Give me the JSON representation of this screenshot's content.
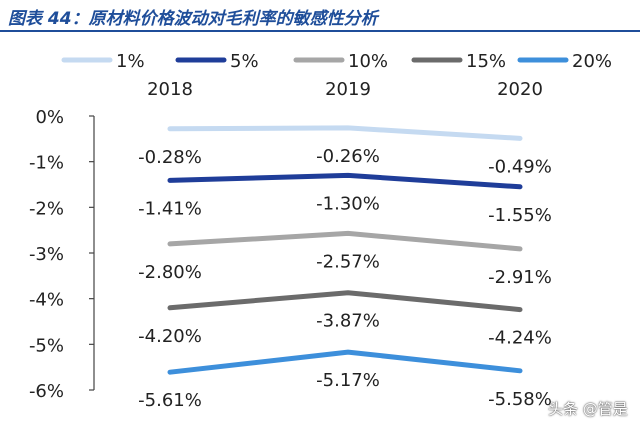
{
  "title": "图表 44：原材料价格波动对毛利率的敏感性分析",
  "watermark": "头条 @管是",
  "chart_data": {
    "type": "line",
    "title": "图表 44：原材料价格波动对毛利率的敏感性分析",
    "categories": [
      "2018",
      "2019",
      "2020"
    ],
    "ylim": [
      -6,
      0
    ],
    "yticks": [
      0,
      -1,
      -2,
      -3,
      -4,
      -5,
      -6
    ],
    "ytick_labels": [
      "0%",
      "-1%",
      "-2%",
      "-3%",
      "-4%",
      "-5%",
      "-6%"
    ],
    "grid": false,
    "legend_position": "top",
    "series": [
      {
        "name": "1%",
        "color": "#c5daf1",
        "values": [
          -0.28,
          -0.26,
          -0.49
        ],
        "labels": [
          "-0.28%",
          "-0.26%",
          "-0.49%"
        ]
      },
      {
        "name": "5%",
        "color": "#1f3d99",
        "values": [
          -1.41,
          -1.3,
          -1.55
        ],
        "labels": [
          "-1.41%",
          "-1.30%",
          "-1.55%"
        ]
      },
      {
        "name": "10%",
        "color": "#a6a6a6",
        "values": [
          -2.8,
          -2.57,
          -2.91
        ],
        "labels": [
          "-2.80%",
          "-2.57%",
          "-2.91%"
        ]
      },
      {
        "name": "15%",
        "color": "#6b6b6b",
        "values": [
          -4.2,
          -3.87,
          -4.24
        ],
        "labels": [
          "-4.20%",
          "-3.87%",
          "-4.24%"
        ]
      },
      {
        "name": "20%",
        "color": "#3d8fdb",
        "values": [
          -5.61,
          -5.17,
          -5.58
        ],
        "labels": [
          "-5.61%",
          "-5.17%",
          "-5.58%"
        ]
      }
    ]
  }
}
